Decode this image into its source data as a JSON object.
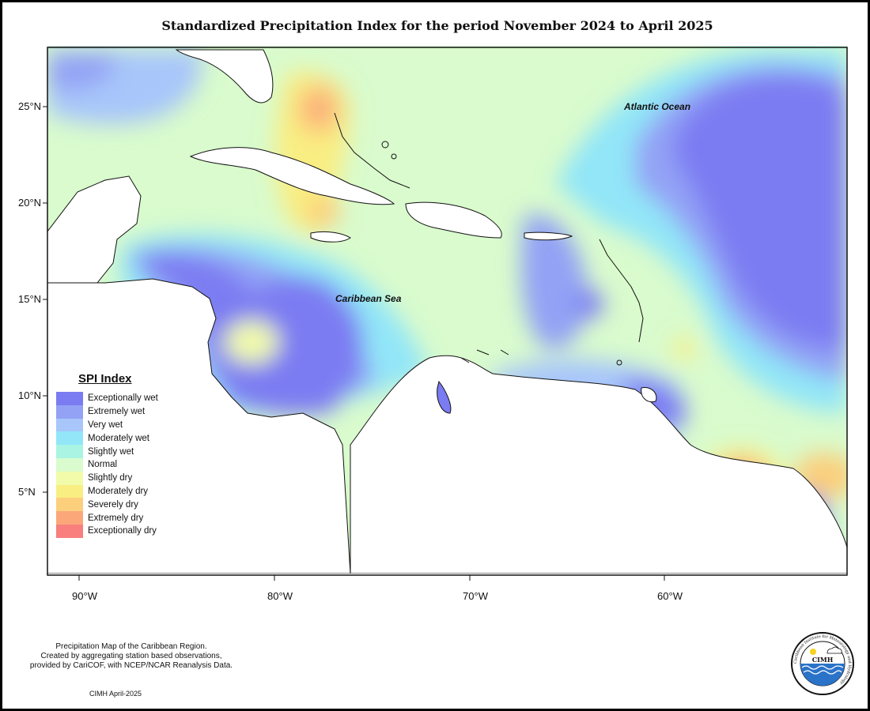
{
  "title": "Standardized Precipitation Index for the period November 2024 to April 2025",
  "axes": {
    "y_labels": [
      "25°N",
      "20°N",
      "15°N",
      "10°N",
      "5°N"
    ],
    "x_labels": [
      "90°W",
      "80°W",
      "70°W",
      "60°W"
    ]
  },
  "map_labels": {
    "atlantic": "Atlantic Ocean",
    "caribbean": "Caribbean Sea"
  },
  "legend": {
    "title": "SPI Index",
    "items": [
      {
        "label": "Exceptionally wet",
        "color": "#7b7bf2"
      },
      {
        "label": "Extremely wet",
        "color": "#93a2f5"
      },
      {
        "label": "Very wet",
        "color": "#a8c6fa"
      },
      {
        "label": "Moderately wet",
        "color": "#92e6f8"
      },
      {
        "label": "Slightly wet",
        "color": "#a9f4e2"
      },
      {
        "label": "Normal",
        "color": "#d9fbcd"
      },
      {
        "label": "Slightly dry",
        "color": "#f1fbaa"
      },
      {
        "label": "Moderately dry",
        "color": "#f9ee82"
      },
      {
        "label": "Severely dry",
        "color": "#fbcf7c"
      },
      {
        "label": "Extremely dry",
        "color": "#fba77a"
      },
      {
        "label": "Exceptionally dry",
        "color": "#f97f7f"
      }
    ]
  },
  "footer": {
    "line1": "Precipitation Map of the Caribbean Region.",
    "line2": "Created by aggregating station based observations,",
    "line3": "provided by CariCOF, with NCEP/NCAR Reanalysis Data.",
    "date": "CIMH April-2025"
  },
  "logo": {
    "text": "CIMH",
    "ring_text": "Caribbean Institute for Meteorology and Hydrology"
  }
}
